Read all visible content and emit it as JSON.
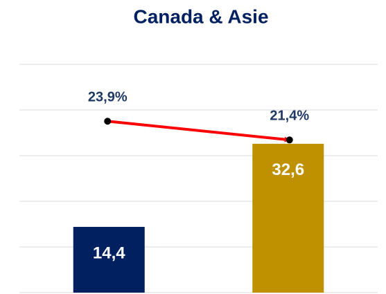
{
  "chart_data": {
    "type": "bar",
    "title": "Canada & Asie",
    "categories": [
      null,
      null
    ],
    "series": [
      {
        "colors": [
          "#002060",
          "#bf9000"
        ],
        "values": [
          14.4,
          32.6
        ],
        "value_labels": [
          "14,4",
          "32,6"
        ]
      },
      {
        "type": "line",
        "axis": "y2",
        "color": "#ff0000",
        "values": [
          23.9,
          21.4
        ],
        "value_labels": [
          "23,9%",
          "21,4%"
        ]
      }
    ],
    "ylim": [
      0,
      50
    ],
    "yticks": [
      0,
      10,
      20,
      30,
      40,
      50
    ],
    "grid": true,
    "y2lim": [
      1,
      31.5
    ]
  }
}
